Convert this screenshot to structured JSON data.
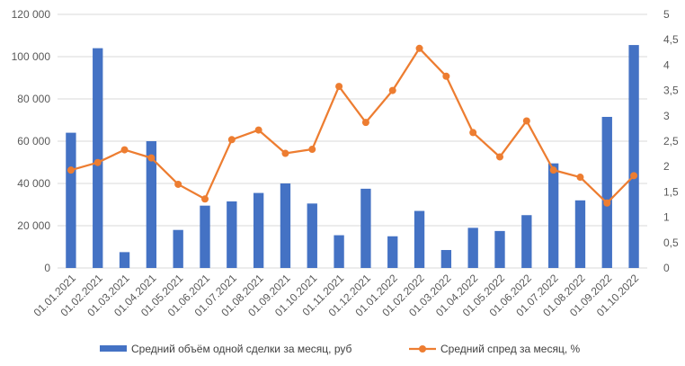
{
  "chart_data": {
    "type": "bar",
    "categories": [
      "01.01.2021",
      "01.02.2021",
      "01.03.2021",
      "01.04.2021",
      "01.05.2021",
      "01.06.2021",
      "01.07.2021",
      "01.08.2021",
      "01.09.2021",
      "01.10.2021",
      "01.11.2021",
      "01.12.2021",
      "01.01.2022",
      "01.02.2022",
      "01.03.2022",
      "01.04.2022",
      "01.05.2022",
      "01.06.2022",
      "01.07.2022",
      "01.08.2022",
      "01.09.2022",
      "01.10.2022"
    ],
    "series": [
      {
        "name": "Средний объём одной сделки за месяц, руб",
        "type": "bar",
        "axis": "left",
        "color": "#4472C4",
        "values": [
          64000,
          104000,
          7500,
          60000,
          18000,
          29500,
          31500,
          35500,
          40000,
          30500,
          15500,
          37500,
          15000,
          27000,
          8500,
          19000,
          17500,
          25000,
          49500,
          32000,
          71500,
          105500
        ]
      },
      {
        "name": "Средний спред за месяц, %",
        "type": "line",
        "axis": "right",
        "color": "#ED7D31",
        "values": [
          1.93,
          2.08,
          2.33,
          2.17,
          1.65,
          1.36,
          2.53,
          2.72,
          2.26,
          2.34,
          3.58,
          2.87,
          3.5,
          4.33,
          3.78,
          2.67,
          2.19,
          2.9,
          1.93,
          1.79,
          1.28,
          1.82
        ]
      }
    ],
    "y_left": {
      "ylim": [
        0,
        120000
      ],
      "ticks": [
        "0",
        "20 000",
        "40 000",
        "60 000",
        "80 000",
        "100 000",
        "120 000"
      ]
    },
    "y_right": {
      "ylim": [
        0,
        5
      ],
      "ticks": [
        "0",
        "0,5",
        "1",
        "1,5",
        "2",
        "2,5",
        "3",
        "3,5",
        "4",
        "4,5",
        "5"
      ]
    },
    "grid": true,
    "legend": "bottom"
  }
}
